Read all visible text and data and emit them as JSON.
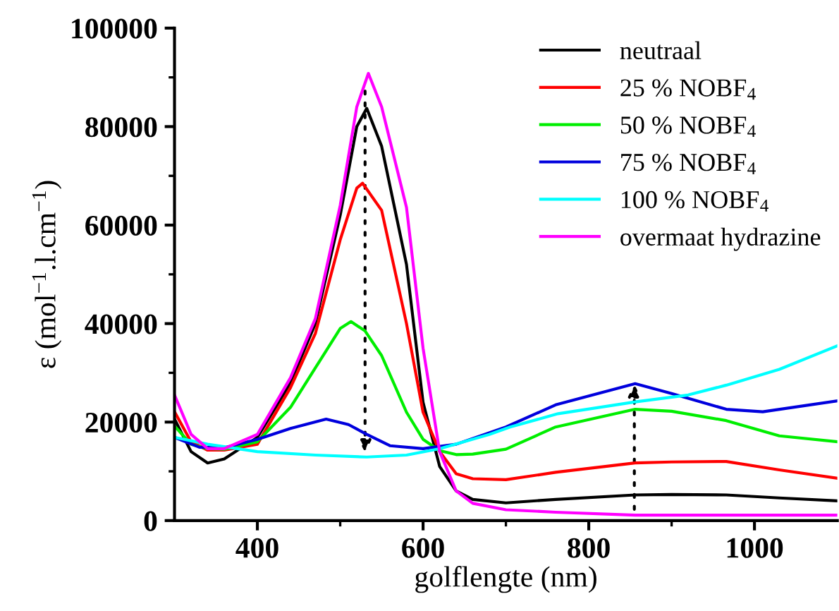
{
  "chart_data": {
    "type": "line",
    "xlabel": "golflengte (nm)",
    "ylabel": "ε (mol$^{−1}$.l.cm$^{−1}$)",
    "xlim": [
      300,
      1100
    ],
    "xticks": [
      400,
      {
        "value": 500,
        "label": null
      },
      600,
      {
        "value": 700,
        "label": null
      },
      800,
      {
        "value": 900,
        "label": null
      },
      1000
    ],
    "ylim": [
      0,
      100000
    ],
    "yticks": [
      0,
      {
        "value": 10000,
        "label": null
      },
      20000,
      {
        "value": 30000,
        "label": null
      },
      40000,
      {
        "value": 50000,
        "label": null
      },
      60000,
      {
        "value": 70000,
        "label": null
      },
      80000,
      {
        "value": 90000,
        "label": null
      },
      100000
    ],
    "grid": false,
    "legend": "top right",
    "marker": "none",
    "line_style": "solid",
    "series": [
      {
        "name": "neutraal",
        "color": "#000000",
        "x": [
          300,
          320,
          340,
          360,
          400,
          440,
          470,
          500,
          520,
          532,
          550,
          580,
          600,
          620,
          640,
          660,
          700,
          760,
          856,
          900,
          966,
          1030,
          1100
        ],
        "values": [
          20600,
          14000,
          11700,
          12500,
          16900,
          28000,
          40000,
          62000,
          80000,
          83700,
          76000,
          52000,
          24000,
          11000,
          6000,
          4300,
          3600,
          4300,
          5200,
          5300,
          5200,
          4600,
          4000
        ]
      },
      {
        "name": "25 % NOBF$_{4}$",
        "color": "#ff0000",
        "x": [
          300,
          320,
          340,
          360,
          400,
          440,
          470,
          500,
          520,
          527,
          550,
          580,
          600,
          620,
          640,
          660,
          700,
          760,
          856,
          900,
          966,
          1030,
          1100
        ],
        "values": [
          22100,
          16000,
          14300,
          14300,
          15500,
          27000,
          38000,
          57000,
          67500,
          68500,
          63000,
          40000,
          22000,
          14000,
          9500,
          8500,
          8300,
          9800,
          11700,
          11900,
          12000,
          10300,
          8600
        ]
      },
      {
        "name": "50 % NOBF$_{4}$",
        "color": "#00ee00",
        "x": [
          300,
          320,
          340,
          360,
          400,
          440,
          470,
          500,
          513,
          530,
          550,
          580,
          600,
          620,
          640,
          660,
          700,
          760,
          856,
          900,
          966,
          1030,
          1100
        ],
        "values": [
          19200,
          15500,
          14600,
          14500,
          16000,
          23000,
          31000,
          39000,
          40400,
          38500,
          33500,
          22000,
          16500,
          14200,
          13400,
          13500,
          14500,
          19000,
          22600,
          22200,
          20300,
          17200,
          16000
        ]
      },
      {
        "name": "75 % NOBF$_{4}$",
        "color": "#0000dd",
        "x": [
          300,
          330,
          360,
          400,
          440,
          483,
          510,
          532,
          560,
          600,
          640,
          700,
          760,
          856,
          900,
          966,
          1010,
          1100
        ],
        "values": [
          16900,
          14900,
          14800,
          16500,
          18700,
          20600,
          19500,
          17500,
          15200,
          14600,
          15500,
          19000,
          23500,
          27800,
          25800,
          22600,
          22100,
          24300
        ]
      },
      {
        "name": "100 % NOBF$_{4}$",
        "color": "#00ffff",
        "x": [
          300,
          340,
          400,
          470,
          532,
          580,
          620,
          680,
          705,
          763,
          856,
          920,
          966,
          1030,
          1100
        ],
        "values": [
          16900,
          15500,
          14000,
          13300,
          12900,
          13300,
          14600,
          17500,
          19000,
          21700,
          24100,
          25500,
          27500,
          30700,
          35500
        ]
      },
      {
        "name": "overmaat hydrazine",
        "color": "#ff00ff",
        "x": [
          300,
          320,
          340,
          360,
          400,
          440,
          470,
          500,
          520,
          534,
          550,
          580,
          600,
          620,
          640,
          660,
          700,
          760,
          856,
          1100
        ],
        "values": [
          25500,
          17500,
          14600,
          14600,
          17500,
          29000,
          41000,
          64000,
          84000,
          90800,
          84000,
          63600,
          35000,
          14000,
          6000,
          3500,
          2200,
          1700,
          1100,
          1100
        ]
      }
    ]
  }
}
